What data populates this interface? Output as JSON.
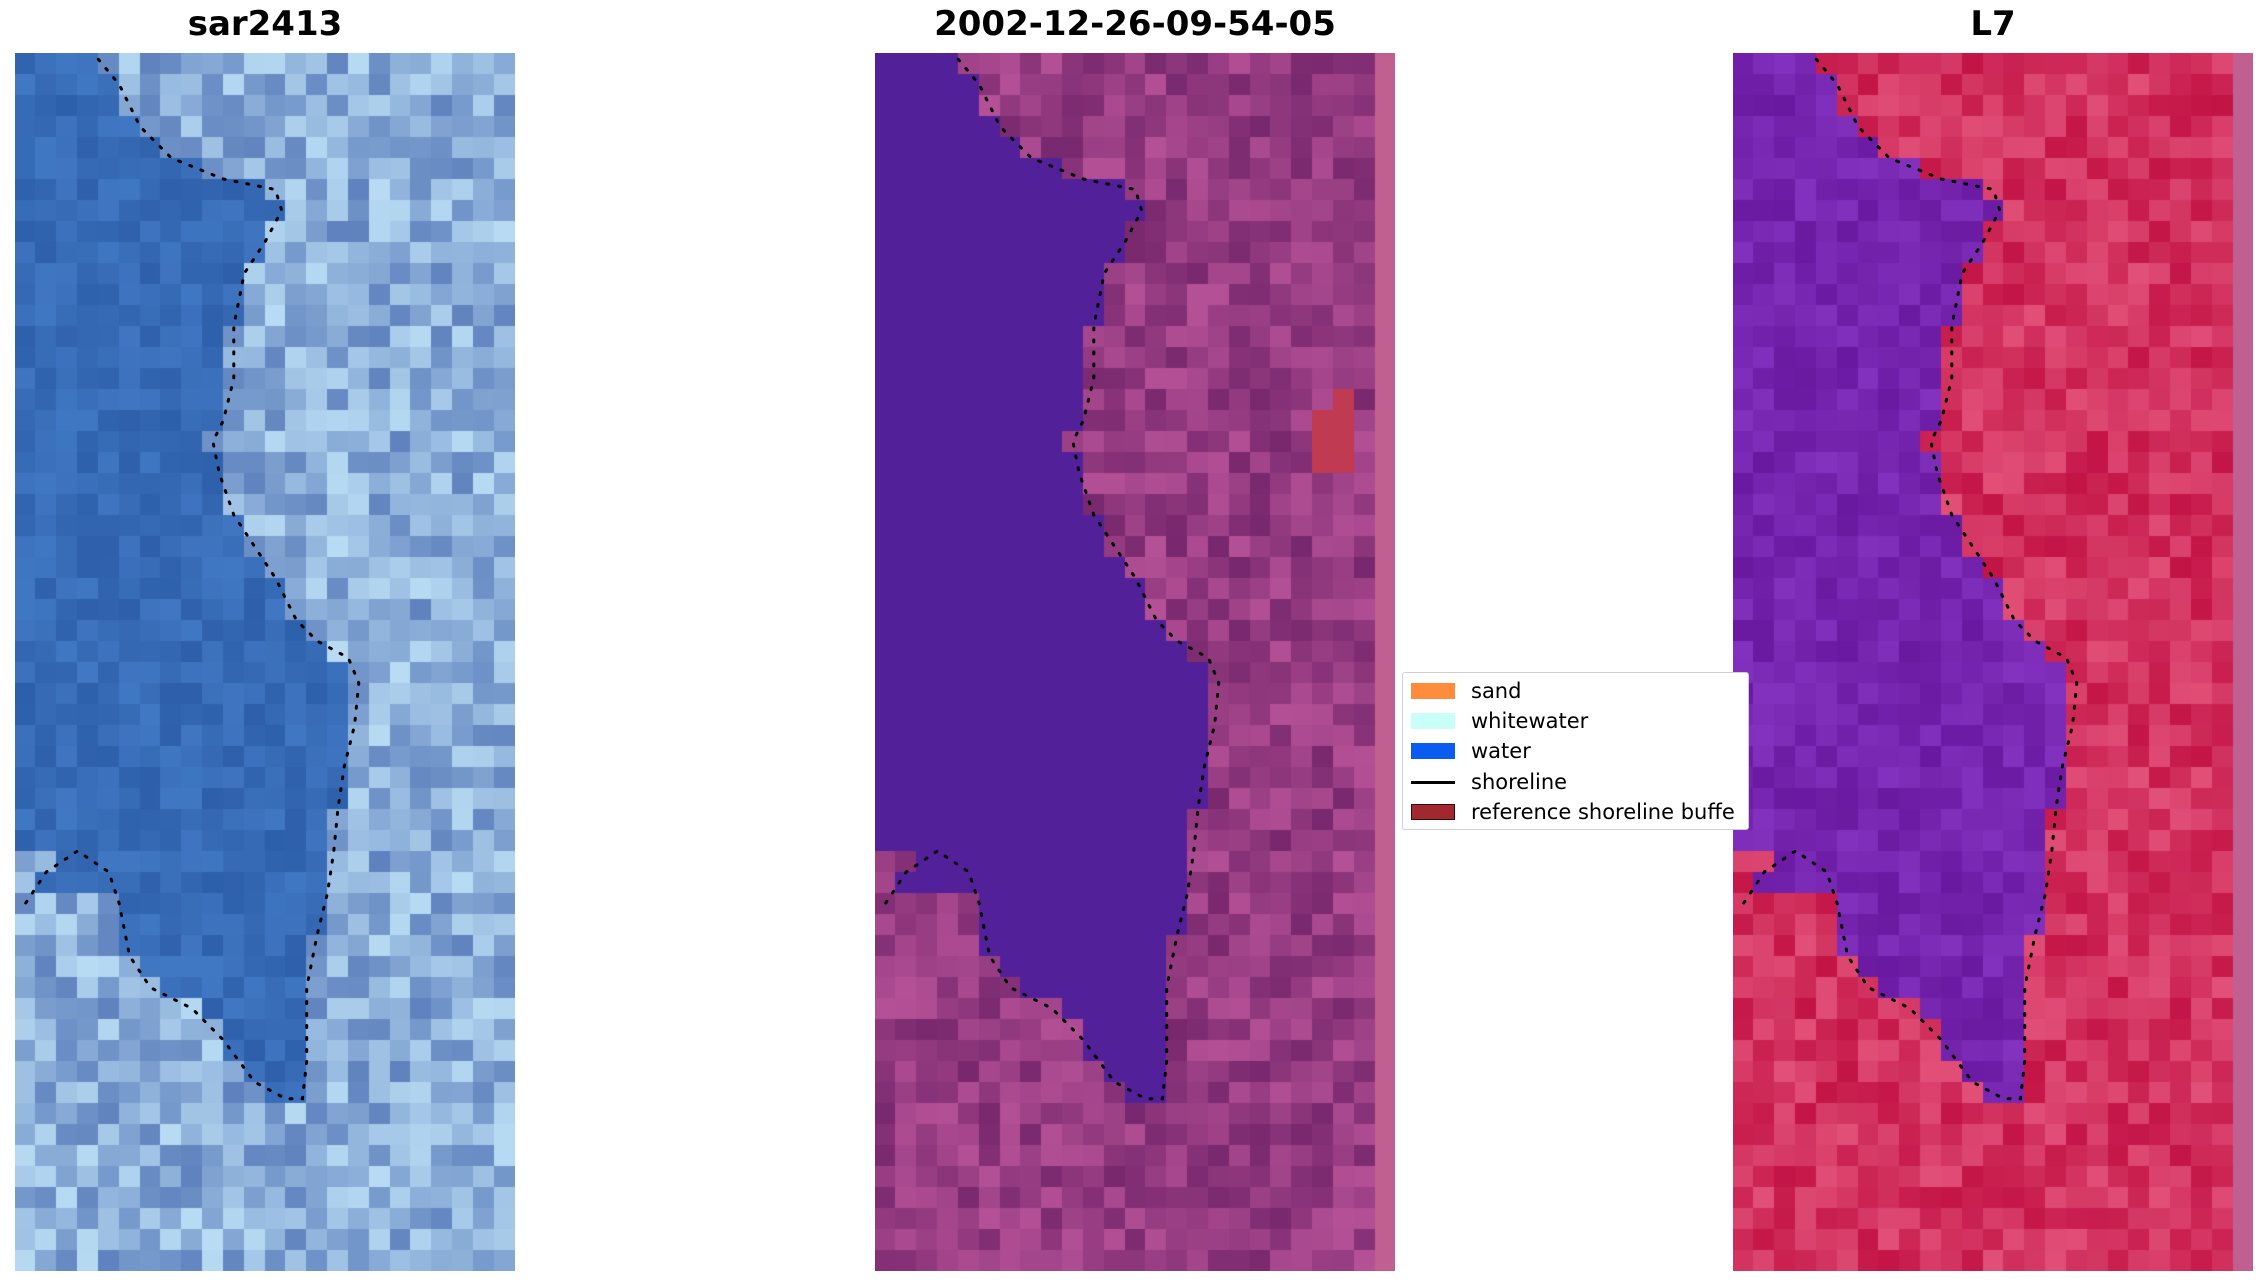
{
  "panels": [
    {
      "id": "rgb",
      "title": "sar2413"
    },
    {
      "id": "classified",
      "title": "2002-12-26-09-54-05"
    },
    {
      "id": "index",
      "title": "L7"
    }
  ],
  "legend": {
    "items": [
      {
        "label": "sand",
        "color": "#ff8c3c",
        "kind": "patch"
      },
      {
        "label": "whitewater",
        "color": "#c8fff8",
        "kind": "patch"
      },
      {
        "label": "water",
        "color": "#0a5cf0",
        "kind": "patch"
      },
      {
        "label": "shoreline",
        "color": "#000000",
        "kind": "line"
      },
      {
        "label": "reference shoreline buffe",
        "color": "#a0282e",
        "kind": "patch"
      }
    ]
  },
  "colors": {
    "water_class": "#52219a",
    "shoreline": "#000000",
    "rgb_base": "#3a6cc0",
    "index_high": "#c8003c",
    "index_low": "#6a20b0"
  }
}
